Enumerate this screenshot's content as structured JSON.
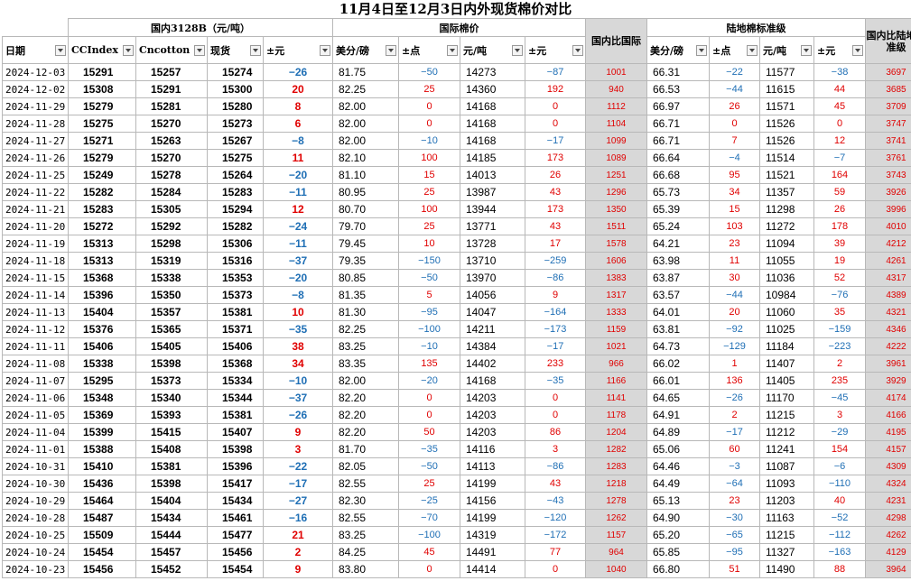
{
  "title": "11月4日至12月3日内外现货棉价对比",
  "groups": {
    "domestic": "国内3128B（元/吨）",
    "intl": "国际棉价",
    "port": "陆地棉标准级"
  },
  "headers": {
    "date": "日期",
    "ccindex": "CCIndex",
    "cncotton": "Cncotton",
    "spot": "现货",
    "chg": "±元",
    "us_cents": "美分/磅",
    "pts": "±点",
    "yuan_ton": "元/吨",
    "chg2": "±元",
    "dom_vs_intl": "国内比国际",
    "us_cents2": "美分/磅",
    "pts2": "±点",
    "yuan_ton2": "元/吨",
    "chg3": "±元",
    "dom_vs_port": "国内比陆地标准级"
  },
  "rows": [
    [
      "2024-12-03",
      "15291",
      "15257",
      "15274",
      "−26",
      "81.75",
      "−50",
      "14273",
      "−87",
      "1001",
      "66.31",
      "−22",
      "11577",
      "−38",
      "3697"
    ],
    [
      "2024-12-02",
      "15308",
      "15291",
      "15300",
      "20",
      "82.25",
      "25",
      "14360",
      "192",
      "940",
      "66.53",
      "−44",
      "11615",
      "44",
      "3685"
    ],
    [
      "2024-11-29",
      "15279",
      "15281",
      "15280",
      "8",
      "82.00",
      "0",
      "14168",
      "0",
      "1112",
      "66.97",
      "26",
      "11571",
      "45",
      "3709"
    ],
    [
      "2024-11-28",
      "15275",
      "15270",
      "15273",
      "6",
      "82.00",
      "0",
      "14168",
      "0",
      "1104",
      "66.71",
      "0",
      "11526",
      "0",
      "3747"
    ],
    [
      "2024-11-27",
      "15271",
      "15263",
      "15267",
      "−8",
      "82.00",
      "−10",
      "14168",
      "−17",
      "1099",
      "66.71",
      "7",
      "11526",
      "12",
      "3741"
    ],
    [
      "2024-11-26",
      "15279",
      "15270",
      "15275",
      "11",
      "82.10",
      "100",
      "14185",
      "173",
      "1089",
      "66.64",
      "−4",
      "11514",
      "−7",
      "3761"
    ],
    [
      "2024-11-25",
      "15249",
      "15278",
      "15264",
      "−20",
      "81.10",
      "15",
      "14013",
      "26",
      "1251",
      "66.68",
      "95",
      "11521",
      "164",
      "3743"
    ],
    [
      "2024-11-22",
      "15282",
      "15284",
      "15283",
      "−11",
      "80.95",
      "25",
      "13987",
      "43",
      "1296",
      "65.73",
      "34",
      "11357",
      "59",
      "3926"
    ],
    [
      "2024-11-21",
      "15283",
      "15305",
      "15294",
      "12",
      "80.70",
      "100",
      "13944",
      "173",
      "1350",
      "65.39",
      "15",
      "11298",
      "26",
      "3996"
    ],
    [
      "2024-11-20",
      "15272",
      "15292",
      "15282",
      "−24",
      "79.70",
      "25",
      "13771",
      "43",
      "1511",
      "65.24",
      "103",
      "11272",
      "178",
      "4010"
    ],
    [
      "2024-11-19",
      "15313",
      "15298",
      "15306",
      "−11",
      "79.45",
      "10",
      "13728",
      "17",
      "1578",
      "64.21",
      "23",
      "11094",
      "39",
      "4212"
    ],
    [
      "2024-11-18",
      "15313",
      "15319",
      "15316",
      "−37",
      "79.35",
      "−150",
      "13710",
      "−259",
      "1606",
      "63.98",
      "11",
      "11055",
      "19",
      "4261"
    ],
    [
      "2024-11-15",
      "15368",
      "15338",
      "15353",
      "−20",
      "80.85",
      "−50",
      "13970",
      "−86",
      "1383",
      "63.87",
      "30",
      "11036",
      "52",
      "4317"
    ],
    [
      "2024-11-14",
      "15396",
      "15350",
      "15373",
      "−8",
      "81.35",
      "5",
      "14056",
      "9",
      "1317",
      "63.57",
      "−44",
      "10984",
      "−76",
      "4389"
    ],
    [
      "2024-11-13",
      "15404",
      "15357",
      "15381",
      "10",
      "81.30",
      "−95",
      "14047",
      "−164",
      "1333",
      "64.01",
      "20",
      "11060",
      "35",
      "4321"
    ],
    [
      "2024-11-12",
      "15376",
      "15365",
      "15371",
      "−35",
      "82.25",
      "−100",
      "14211",
      "−173",
      "1159",
      "63.81",
      "−92",
      "11025",
      "−159",
      "4346"
    ],
    [
      "2024-11-11",
      "15406",
      "15405",
      "15406",
      "38",
      "83.25",
      "−10",
      "14384",
      "−17",
      "1021",
      "64.73",
      "−129",
      "11184",
      "−223",
      "4222"
    ],
    [
      "2024-11-08",
      "15338",
      "15398",
      "15368",
      "34",
      "83.35",
      "135",
      "14402",
      "233",
      "966",
      "66.02",
      "1",
      "11407",
      "2",
      "3961"
    ],
    [
      "2024-11-07",
      "15295",
      "15373",
      "15334",
      "−10",
      "82.00",
      "−20",
      "14168",
      "−35",
      "1166",
      "66.01",
      "136",
      "11405",
      "235",
      "3929"
    ],
    [
      "2024-11-06",
      "15348",
      "15340",
      "15344",
      "−37",
      "82.20",
      "0",
      "14203",
      "0",
      "1141",
      "64.65",
      "−26",
      "11170",
      "−45",
      "4174"
    ],
    [
      "2024-11-05",
      "15369",
      "15393",
      "15381",
      "−26",
      "82.20",
      "0",
      "14203",
      "0",
      "1178",
      "64.91",
      "2",
      "11215",
      "3",
      "4166"
    ],
    [
      "2024-11-04",
      "15399",
      "15415",
      "15407",
      "9",
      "82.20",
      "50",
      "14203",
      "86",
      "1204",
      "64.89",
      "−17",
      "11212",
      "−29",
      "4195"
    ],
    [
      "2024-11-01",
      "15388",
      "15408",
      "15398",
      "3",
      "81.70",
      "−35",
      "14116",
      "3",
      "1282",
      "65.06",
      "60",
      "11241",
      "154",
      "4157"
    ],
    [
      "2024-10-31",
      "15410",
      "15381",
      "15396",
      "−22",
      "82.05",
      "−50",
      "14113",
      "−86",
      "1283",
      "64.46",
      "−3",
      "11087",
      "−6",
      "4309"
    ],
    [
      "2024-10-30",
      "15436",
      "15398",
      "15417",
      "−17",
      "82.55",
      "25",
      "14199",
      "43",
      "1218",
      "64.49",
      "−64",
      "11093",
      "−110",
      "4324"
    ],
    [
      "2024-10-29",
      "15464",
      "15404",
      "15434",
      "−27",
      "82.30",
      "−25",
      "14156",
      "−43",
      "1278",
      "65.13",
      "23",
      "11203",
      "40",
      "4231"
    ],
    [
      "2024-10-28",
      "15487",
      "15434",
      "15461",
      "−16",
      "82.55",
      "−70",
      "14199",
      "−120",
      "1262",
      "64.90",
      "−30",
      "11163",
      "−52",
      "4298"
    ],
    [
      "2024-10-25",
      "15509",
      "15444",
      "15477",
      "21",
      "83.25",
      "−100",
      "14319",
      "−172",
      "1157",
      "65.20",
      "−65",
      "11215",
      "−112",
      "4262"
    ],
    [
      "2024-10-24",
      "15454",
      "15457",
      "15456",
      "2",
      "84.25",
      "45",
      "14491",
      "77",
      "964",
      "65.85",
      "−95",
      "11327",
      "−163",
      "4129"
    ],
    [
      "2024-10-23",
      "15456",
      "15452",
      "15454",
      "9",
      "83.80",
      "0",
      "14414",
      "0",
      "1040",
      "66.80",
      "51",
      "11490",
      "88",
      "3964"
    ]
  ],
  "colors": {
    "positive": "#e00000",
    "negative": "#1f6fb5",
    "gray_column": "#d8d8d8"
  }
}
